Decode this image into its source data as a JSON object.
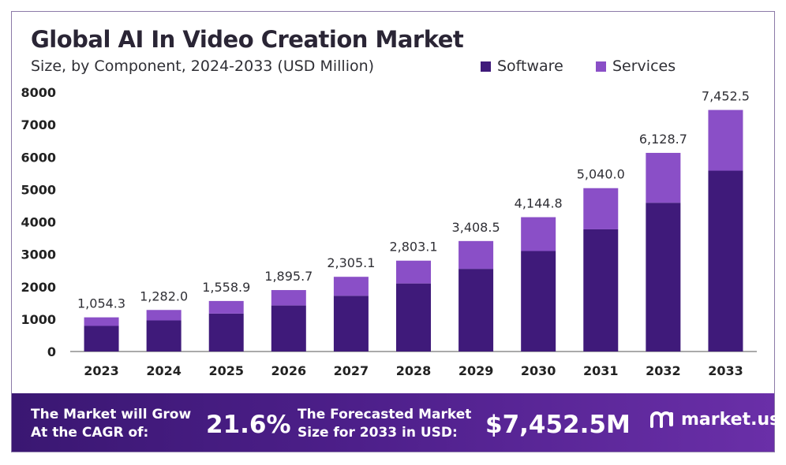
{
  "colors": {
    "software": "#3f1a7a",
    "services": "#8a4fc7",
    "text": "#2a2535",
    "axis": "#222222"
  },
  "header": {
    "title": "Global AI In Video Creation Market",
    "subtitle": "Size, by Component, 2024-2033 (USD Million)"
  },
  "footer": {
    "grow_label": "The Market will Grow\nAt the CAGR of:",
    "cagr": "21.6%",
    "forecast_label": "The Forecasted Market\nSize for 2033 in USD:",
    "size": "$7,452.5M",
    "brand": "market.us",
    "brand_icon": "market-us-logo-icon"
  },
  "chart_data": {
    "type": "bar",
    "stacked": true,
    "title": "Global AI In Video Creation Market",
    "subtitle": "Size, by Component, 2024-2033 (USD Million)",
    "categories": [
      "2023",
      "2024",
      "2025",
      "2026",
      "2027",
      "2028",
      "2029",
      "2030",
      "2031",
      "2032",
      "2033"
    ],
    "series": [
      {
        "name": "Software",
        "values": [
          790,
          960,
          1170,
          1420,
          1720,
          2100,
          2550,
          3100,
          3770,
          4590,
          5580
        ]
      },
      {
        "name": "Services",
        "values": [
          264.3,
          322.0,
          388.9,
          475.7,
          585.1,
          703.1,
          858.5,
          1044.8,
          1270.0,
          1538.7,
          1872.5
        ]
      }
    ],
    "totals": [
      1054.3,
      1282.0,
      1558.9,
      1895.7,
      2305.1,
      2803.1,
      3408.5,
      4144.8,
      5040.0,
      6128.7,
      7452.5
    ],
    "total_labels": [
      "1,054.3",
      "1,282.0",
      "1,558.9",
      "1,895.7",
      "2,305.1",
      "2,803.1",
      "3,408.5",
      "4,144.8",
      "5,040.0",
      "6,128.7",
      "7,452.5"
    ],
    "yticks": [
      0,
      1000,
      2000,
      3000,
      4000,
      5000,
      6000,
      7000,
      8000
    ],
    "ylim": [
      0,
      8000
    ],
    "legend_position": "top-right",
    "grid": false
  }
}
